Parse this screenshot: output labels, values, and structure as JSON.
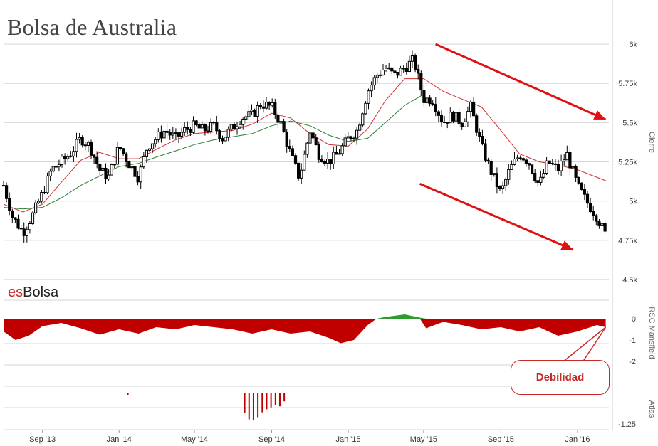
{
  "header": {
    "title": "Bolsa de Australia"
  },
  "brand": {
    "prefix": "es",
    "name": "Bolsa"
  },
  "callout": {
    "label": "Debilidad"
  },
  "colors": {
    "candle": "#000000",
    "sma_short": "#d32f2f",
    "sma_long": "#2e7d32",
    "negative": "#c00000",
    "positive": "#2e9b2e",
    "arrow": "#e01010",
    "callout": "#c62828"
  },
  "chart_data": [
    {
      "type": "candlestick",
      "title": "Bolsa de Australia",
      "ylabel": "Cierre",
      "ylim": [
        4500,
        6100
      ],
      "yticks": [
        4500,
        4750,
        5000,
        5250,
        5500,
        5750,
        6000
      ],
      "yticklabels": [
        "4.5k",
        "4.75k",
        "5k",
        "5.25k",
        "5.5k",
        "5.75k",
        "6k"
      ],
      "x_range": [
        "2013-07-01",
        "2016-02-20"
      ],
      "xticks": [
        {
          "date": "2013-09-01",
          "label": "Sep '13"
        },
        {
          "date": "2014-01-01",
          "label": "Jan '14"
        },
        {
          "date": "2014-05-01",
          "label": "May '14"
        },
        {
          "date": "2014-09-01",
          "label": "Sep '14"
        },
        {
          "date": "2015-01-01",
          "label": "Jan '15"
        },
        {
          "date": "2015-05-01",
          "label": "May '15"
        },
        {
          "date": "2015-09-01",
          "label": "Sep '15"
        },
        {
          "date": "2016-01-01",
          "label": "Jan '16"
        }
      ],
      "closes": [
        [
          "2013-07-01",
          5100
        ],
        [
          "2013-07-15",
          4900
        ],
        [
          "2013-08-01",
          4800
        ],
        [
          "2013-08-15",
          4900
        ],
        [
          "2013-09-01",
          5050
        ],
        [
          "2013-09-15",
          5200
        ],
        [
          "2013-10-01",
          5250
        ],
        [
          "2013-10-15",
          5300
        ],
        [
          "2013-11-01",
          5400
        ],
        [
          "2013-11-15",
          5350
        ],
        [
          "2013-12-01",
          5200
        ],
        [
          "2013-12-15",
          5150
        ],
        [
          "2014-01-01",
          5350
        ],
        [
          "2014-01-15",
          5250
        ],
        [
          "2014-02-01",
          5150
        ],
        [
          "2014-02-15",
          5350
        ],
        [
          "2014-03-01",
          5400
        ],
        [
          "2014-03-15",
          5450
        ],
        [
          "2014-04-01",
          5400
        ],
        [
          "2014-04-15",
          5450
        ],
        [
          "2014-05-01",
          5480
        ],
        [
          "2014-05-15",
          5450
        ],
        [
          "2014-06-01",
          5480
        ],
        [
          "2014-06-15",
          5400
        ],
        [
          "2014-07-01",
          5470
        ],
        [
          "2014-07-15",
          5530
        ],
        [
          "2014-08-01",
          5550
        ],
        [
          "2014-08-15",
          5620
        ],
        [
          "2014-09-01",
          5600
        ],
        [
          "2014-09-15",
          5500
        ],
        [
          "2014-10-01",
          5300
        ],
        [
          "2014-10-15",
          5150
        ],
        [
          "2014-11-01",
          5450
        ],
        [
          "2014-11-15",
          5300
        ],
        [
          "2014-12-01",
          5250
        ],
        [
          "2014-12-15",
          5300
        ],
        [
          "2015-01-01",
          5400
        ],
        [
          "2015-01-15",
          5450
        ],
        [
          "2015-02-01",
          5700
        ],
        [
          "2015-02-15",
          5800
        ],
        [
          "2015-03-01",
          5850
        ],
        [
          "2015-03-15",
          5800
        ],
        [
          "2015-04-01",
          5850
        ],
        [
          "2015-04-15",
          5900
        ],
        [
          "2015-05-01",
          5650
        ],
        [
          "2015-05-15",
          5650
        ],
        [
          "2015-06-01",
          5500
        ],
        [
          "2015-06-15",
          5550
        ],
        [
          "2015-07-01",
          5500
        ],
        [
          "2015-07-15",
          5600
        ],
        [
          "2015-08-01",
          5350
        ],
        [
          "2015-08-15",
          5200
        ],
        [
          "2015-09-01",
          5050
        ],
        [
          "2015-09-15",
          5200
        ],
        [
          "2015-10-01",
          5300
        ],
        [
          "2015-10-15",
          5250
        ],
        [
          "2015-11-01",
          5100
        ],
        [
          "2015-11-15",
          5250
        ],
        [
          "2015-12-01",
          5200
        ],
        [
          "2015-12-15",
          5300
        ],
        [
          "2016-01-01",
          5100
        ],
        [
          "2016-01-15",
          5000
        ],
        [
          "2016-02-01",
          4900
        ],
        [
          "2016-02-15",
          4780
        ]
      ],
      "moving_averages": [
        {
          "color": "#d32f2f",
          "values": [
            [
              "2013-07-01",
              4980
            ],
            [
              "2013-08-01",
              4930
            ],
            [
              "2013-09-01",
              4980
            ],
            [
              "2013-10-01",
              5120
            ],
            [
              "2013-11-01",
              5260
            ],
            [
              "2013-12-01",
              5310
            ],
            [
              "2014-01-01",
              5270
            ],
            [
              "2014-02-01",
              5270
            ],
            [
              "2014-03-01",
              5330
            ],
            [
              "2014-04-01",
              5390
            ],
            [
              "2014-05-01",
              5430
            ],
            [
              "2014-06-01",
              5440
            ],
            [
              "2014-07-01",
              5450
            ],
            [
              "2014-08-01",
              5490
            ],
            [
              "2014-09-01",
              5560
            ],
            [
              "2014-10-01",
              5530
            ],
            [
              "2014-11-01",
              5430
            ],
            [
              "2014-12-01",
              5360
            ],
            [
              "2015-01-01",
              5350
            ],
            [
              "2015-02-01",
              5460
            ],
            [
              "2015-03-01",
              5640
            ],
            [
              "2015-04-01",
              5780
            ],
            [
              "2015-05-01",
              5780
            ],
            [
              "2015-06-01",
              5700
            ],
            [
              "2015-07-01",
              5650
            ],
            [
              "2015-08-01",
              5600
            ],
            [
              "2015-09-01",
              5450
            ],
            [
              "2015-10-01",
              5300
            ],
            [
              "2015-11-01",
              5250
            ],
            [
              "2015-12-01",
              5230
            ],
            [
              "2016-01-01",
              5200
            ],
            [
              "2016-02-15",
              5130
            ]
          ]
        },
        {
          "color": "#2e7d32",
          "values": [
            [
              "2013-07-01",
              4960
            ],
            [
              "2013-08-01",
              4950
            ],
            [
              "2013-09-01",
              4960
            ],
            [
              "2013-10-01",
              5020
            ],
            [
              "2013-11-01",
              5100
            ],
            [
              "2013-12-01",
              5160
            ],
            [
              "2014-01-01",
              5220
            ],
            [
              "2014-02-01",
              5240
            ],
            [
              "2014-03-01",
              5280
            ],
            [
              "2014-04-01",
              5320
            ],
            [
              "2014-05-01",
              5360
            ],
            [
              "2014-06-01",
              5390
            ],
            [
              "2014-07-01",
              5410
            ],
            [
              "2014-08-01",
              5430
            ],
            [
              "2014-09-01",
              5480
            ],
            [
              "2014-10-01",
              5510
            ],
            [
              "2014-11-01",
              5480
            ],
            [
              "2014-12-01",
              5420
            ],
            [
              "2015-01-01",
              5380
            ],
            [
              "2015-02-01",
              5400
            ],
            [
              "2015-03-01",
              5500
            ],
            [
              "2015-04-01",
              5610
            ],
            [
              "2015-05-01",
              5680
            ]
          ]
        }
      ],
      "annotations": [
        "down-trend arrows",
        "Debilidad"
      ]
    },
    {
      "type": "area",
      "ylabel": "RSC Mansfield",
      "ylim": [
        -2.3,
        0.35
      ],
      "yticks": [
        0,
        -1,
        -2
      ],
      "yticklabels": [
        "0",
        "-1",
        "-2"
      ],
      "values": [
        [
          "2013-07-01",
          -0.6
        ],
        [
          "2013-07-20",
          -1.0
        ],
        [
          "2013-08-10",
          -0.8
        ],
        [
          "2013-09-01",
          -0.35
        ],
        [
          "2013-10-01",
          -0.2
        ],
        [
          "2013-11-01",
          -0.45
        ],
        [
          "2013-12-01",
          -0.75
        ],
        [
          "2014-01-01",
          -0.5
        ],
        [
          "2014-02-01",
          -0.7
        ],
        [
          "2014-03-01",
          -0.4
        ],
        [
          "2014-04-01",
          -0.5
        ],
        [
          "2014-05-01",
          -0.3
        ],
        [
          "2014-06-01",
          -0.4
        ],
        [
          "2014-07-01",
          -0.5
        ],
        [
          "2014-08-01",
          -0.7
        ],
        [
          "2014-09-01",
          -0.5
        ],
        [
          "2014-10-01",
          -0.7
        ],
        [
          "2014-11-01",
          -0.6
        ],
        [
          "2014-12-01",
          -0.9
        ],
        [
          "2014-12-20",
          -1.15
        ],
        [
          "2015-01-10",
          -1.0
        ],
        [
          "2015-02-01",
          -0.3
        ],
        [
          "2015-02-15",
          0.0
        ],
        [
          "2015-03-01",
          0.08
        ],
        [
          "2015-04-01",
          0.2
        ],
        [
          "2015-04-25",
          0.05
        ],
        [
          "2015-05-05",
          -0.45
        ],
        [
          "2015-06-01",
          -0.15
        ],
        [
          "2015-07-01",
          -0.3
        ],
        [
          "2015-08-01",
          -0.5
        ],
        [
          "2015-09-01",
          -0.4
        ],
        [
          "2015-10-01",
          -0.6
        ],
        [
          "2015-11-01",
          -0.4
        ],
        [
          "2015-12-01",
          -0.8
        ],
        [
          "2016-01-01",
          -0.6
        ],
        [
          "2016-02-01",
          -0.3
        ],
        [
          "2016-02-15",
          -0.4
        ]
      ]
    },
    {
      "type": "bar",
      "ylabel": "Atlas",
      "yticks": [
        -1.25
      ],
      "yticklabels": [
        "-1.25"
      ],
      "values": [
        [
          "2014-01-15",
          -0.1
        ],
        [
          "2014-07-20",
          -1.0
        ],
        [
          "2014-07-27",
          -1.3
        ],
        [
          "2014-08-03",
          -1.35
        ],
        [
          "2014-08-10",
          -1.2
        ],
        [
          "2014-08-17",
          -0.95
        ],
        [
          "2014-08-24",
          -0.8
        ],
        [
          "2014-08-31",
          -0.7
        ],
        [
          "2014-09-07",
          -0.6
        ],
        [
          "2014-09-14",
          -0.65
        ],
        [
          "2014-09-21",
          -0.4
        ]
      ]
    }
  ]
}
